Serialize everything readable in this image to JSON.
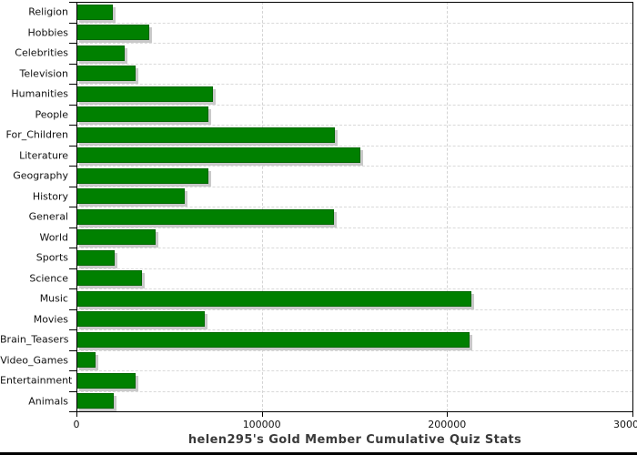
{
  "chart_data": {
    "type": "bar",
    "orientation": "horizontal",
    "title": "helen295's Gold Member Cumulative Quiz Stats",
    "categories": [
      "Religion",
      "Hobbies",
      "Celebrities",
      "Television",
      "Humanities",
      "People",
      "For_Children",
      "Literature",
      "Geography",
      "History",
      "General",
      "World",
      "Sports",
      "Science",
      "Music",
      "Movies",
      "Brain_Teasers",
      "Video_Games",
      "Entertainment",
      "Animals"
    ],
    "values": [
      19500,
      39500,
      26000,
      32000,
      73500,
      71000,
      139500,
      153000,
      71000,
      58500,
      139000,
      42500,
      20500,
      35500,
      213000,
      69000,
      212000,
      10500,
      32000,
      20000
    ],
    "xlabel": "",
    "ylabel": "",
    "xlim": [
      0,
      300000
    ],
    "xticks": [
      0,
      100000,
      200000,
      300000
    ],
    "xtick_labels": [
      "0",
      "100000",
      "200000",
      "300000"
    ],
    "grid": true,
    "legend_position": "none",
    "bar_color": "#008000",
    "bar_border_color": "#006600",
    "bar_shadow_color": "#c9c9c9",
    "gridline_color": "#d9d9d9",
    "axis_color": "#000000",
    "title_color": "#3a3a3a",
    "background_color": "#ffffff"
  }
}
